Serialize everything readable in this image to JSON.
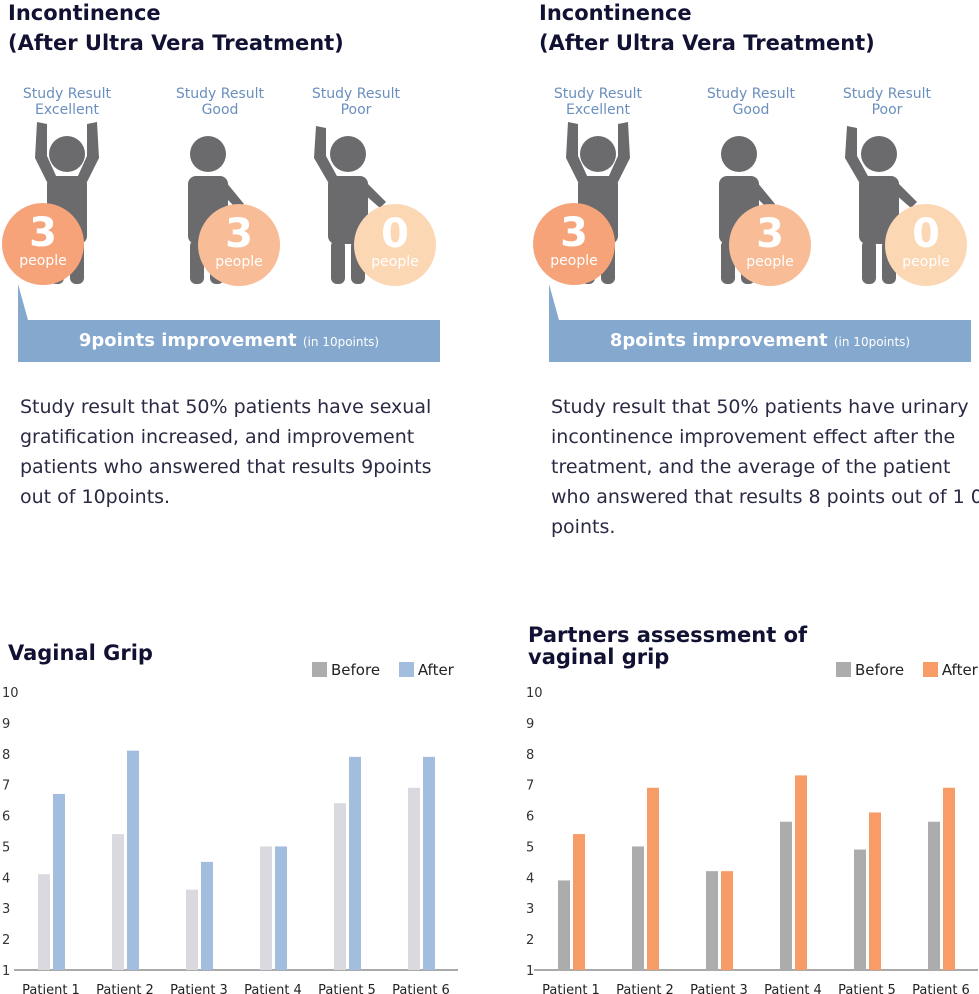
{
  "panels": [
    {
      "title_line1": "Incontinence",
      "title_line2": "(After Ultra Vera Treatment)",
      "figures": [
        {
          "label1": "Study Result",
          "label2": "Excellent",
          "count": "3",
          "unit": "people",
          "color": "#f6a37a"
        },
        {
          "label1": "Study Result",
          "label2": "Good",
          "count": "3",
          "unit": "people",
          "color": "#f8bc96"
        },
        {
          "label1": "Study Result",
          "label2": "Poor",
          "count": "0",
          "unit": "people",
          "color": "#fcd7b4"
        }
      ],
      "banner_main": "9points improvement",
      "banner_sub": "(in 10points)",
      "description": "Study result that 50% patients have sexual gratification increased, and improvement patients who answered that results 9points out of 10points."
    },
    {
      "title_line1": "Incontinence",
      "title_line2": "(After Ultra Vera Treatment)",
      "figures": [
        {
          "label1": "Study Result",
          "label2": "Excellent",
          "count": "3",
          "unit": "people",
          "color": "#f6a37a"
        },
        {
          "label1": "Study Result",
          "label2": "Good",
          "count": "3",
          "unit": "people",
          "color": "#f8bc96"
        },
        {
          "label1": "Study Result",
          "label2": "Poor",
          "count": "0",
          "unit": "people",
          "color": "#fcd7b4"
        }
      ],
      "banner_main": "8points improvement",
      "banner_sub": "(in 10points)",
      "description": "Study result that 50% patients have urinary incontinence improvement effect after the treatment, and the average of the patient who answered that results 8 points out of 1 0 points."
    }
  ],
  "colors": {
    "banner": "#85a8cf",
    "figure": "#6b6b6e",
    "title": "#111133",
    "label": "#6a8fbd"
  },
  "chart_data": [
    {
      "type": "bar",
      "title": "Vaginal Grip",
      "categories": [
        "Patient 1",
        "Patient 2",
        "Patient 3",
        "Patient 4",
        "Patient 5",
        "Patient 6"
      ],
      "series": [
        {
          "name": "Before",
          "values": [
            4.1,
            5.4,
            3.6,
            5.0,
            6.4,
            6.9
          ],
          "color": "#d9d9df"
        },
        {
          "name": "After",
          "values": [
            6.7,
            8.1,
            4.5,
            5.0,
            7.9,
            7.9
          ],
          "color": "#a2bddd"
        }
      ],
      "legend_swatch": {
        "Before": "#adadad",
        "After": "#a2bddd"
      },
      "yticks": [
        "1",
        "2",
        "3",
        "4",
        "5",
        "6",
        "7",
        "8",
        "9",
        "10"
      ],
      "ylim": [
        1,
        10
      ],
      "legend": "top-right"
    },
    {
      "type": "bar",
      "title": "Partners assessment of vaginal grip",
      "title_line1": "Partners assessment of",
      "title_line2": "vaginal grip",
      "categories": [
        "Patient 1",
        "Patient 2",
        "Patient 3",
        "Patient 4",
        "Patient 5",
        "Patient 6"
      ],
      "series": [
        {
          "name": "Before",
          "values": [
            3.9,
            5.0,
            4.2,
            5.8,
            4.9,
            5.8
          ],
          "color": "#acacac"
        },
        {
          "name": "After",
          "values": [
            5.4,
            6.9,
            4.2,
            7.3,
            6.1,
            6.9
          ],
          "color": "#f79c67"
        }
      ],
      "legend_swatch": {
        "Before": "#acacac",
        "After": "#f79c67"
      },
      "yticks": [
        "1",
        "2",
        "3",
        "4",
        "5",
        "6",
        "7",
        "8",
        "9",
        "10"
      ],
      "ylim": [
        1,
        10
      ],
      "legend": "top-right"
    }
  ]
}
